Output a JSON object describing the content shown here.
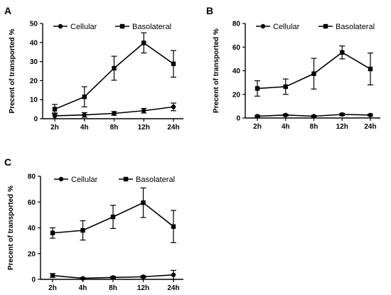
{
  "chart_data": [
    {
      "panel": "A",
      "type": "line",
      "categories": [
        "2h",
        "4h",
        "8h",
        "12h",
        "24h"
      ],
      "ylabel": "Precent of transported %",
      "ylim": [
        0,
        50
      ],
      "yticks": [
        0,
        10,
        20,
        30,
        40,
        50
      ],
      "legend": "top",
      "series": [
        {
          "name": "Cellular",
          "marker": "circle",
          "values": [
            1.5,
            2,
            2.8,
            4.2,
            6.2
          ],
          "errors": [
            1.5,
            1.2,
            1,
            1.2,
            2
          ]
        },
        {
          "name": "Basolateral",
          "marker": "square",
          "values": [
            5,
            11.5,
            26.5,
            39.8,
            28.8
          ],
          "errors": [
            2.5,
            5.3,
            6.3,
            5.3,
            7
          ]
        }
      ]
    },
    {
      "panel": "B",
      "type": "line",
      "categories": [
        "2h",
        "4h",
        "8h",
        "12h",
        "24h"
      ],
      "ylabel": "Precent of transported %",
      "ylim": [
        0,
        80
      ],
      "yticks": [
        0,
        20,
        40,
        60,
        80
      ],
      "legend": "top",
      "series": [
        {
          "name": "Cellular",
          "marker": "circle",
          "values": [
            1.5,
            2.5,
            1.5,
            3,
            2.5
          ],
          "errors": [
            0.8,
            0.8,
            0.8,
            1,
            0.8
          ]
        },
        {
          "name": "Basolateral",
          "marker": "square",
          "values": [
            25,
            26.5,
            37.5,
            55.5,
            41.5
          ],
          "errors": [
            6.5,
            6.5,
            13,
            5.5,
            13.5
          ]
        }
      ]
    },
    {
      "panel": "C",
      "type": "line",
      "categories": [
        "2h",
        "4h",
        "8h",
        "12h",
        "24h"
      ],
      "ylabel": "Precent of transported %",
      "ylim": [
        0,
        80
      ],
      "yticks": [
        0,
        20,
        40,
        60,
        80
      ],
      "legend": "top",
      "series": [
        {
          "name": "Cellular",
          "marker": "circle",
          "values": [
            3,
            0.8,
            1.5,
            2,
            3.5
          ],
          "errors": [
            1.5,
            0.6,
            0.8,
            0.8,
            3.5
          ]
        },
        {
          "name": "Basolateral",
          "marker": "square",
          "values": [
            36,
            38,
            48.5,
            59.5,
            41
          ],
          "errors": [
            4,
            7.5,
            9,
            11.5,
            12.5
          ]
        }
      ]
    }
  ]
}
